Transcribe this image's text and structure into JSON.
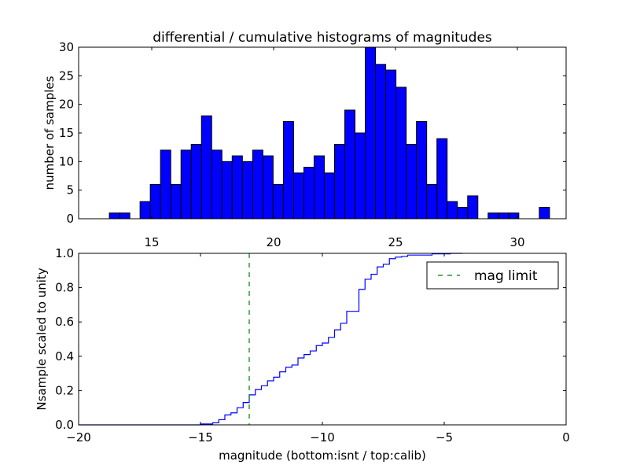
{
  "chart_data": [
    {
      "type": "bar",
      "title": "differential / cumulative histograms of magnitudes",
      "xlabel": "",
      "ylabel": "number of samples",
      "xlim": [
        12,
        32
      ],
      "ylim": [
        0,
        30
      ],
      "xticks": [
        15,
        20,
        25,
        30
      ],
      "yticks": [
        0,
        5,
        10,
        15,
        20,
        25,
        30
      ],
      "bin_start": 13.26,
      "bin_width": 0.42,
      "values": [
        1,
        1,
        0,
        3,
        6,
        12,
        6,
        12,
        13,
        18,
        12,
        10,
        11,
        10,
        12,
        11,
        6,
        17,
        8,
        9,
        11,
        8,
        13,
        19,
        15,
        30,
        27,
        26,
        23,
        13,
        17,
        6,
        14,
        3,
        2,
        4,
        0,
        1,
        1,
        1,
        0,
        0,
        2
      ],
      "color": "#0000ff",
      "grid": false
    },
    {
      "type": "line",
      "xlabel": "magnitude (bottom:isnt / top:calib)",
      "ylabel": "Nsample scaled to unity",
      "xlim": [
        -20,
        0
      ],
      "ylim": [
        0,
        1.0
      ],
      "xticks": [
        -20,
        -15,
        -10,
        -5,
        0
      ],
      "yticks": [
        "0.0",
        "0.2",
        "0.4",
        "0.6",
        "0.8",
        "1.0"
      ],
      "step_start": -15.0,
      "step_width": 0.25,
      "cumulative": [
        0.005,
        0.005,
        0.012,
        0.03,
        0.058,
        0.07,
        0.1,
        0.13,
        0.175,
        0.206,
        0.228,
        0.257,
        0.278,
        0.309,
        0.336,
        0.349,
        0.39,
        0.41,
        0.431,
        0.462,
        0.477,
        0.51,
        0.554,
        0.592,
        0.662,
        0.662,
        0.79,
        0.849,
        0.878,
        0.921,
        0.936,
        0.969,
        0.978,
        0.982,
        0.99,
        0.99,
        0.99,
        0.99,
        0.997,
        0.997,
        0.997,
        1.0
      ],
      "line_color": "#0000ff",
      "vline": {
        "x": -13.0,
        "label": "mag limit",
        "color": "#008000",
        "style": "dashed"
      },
      "legend": {
        "placement": "top-right",
        "entries": [
          "mag limit"
        ]
      },
      "grid": false
    }
  ]
}
